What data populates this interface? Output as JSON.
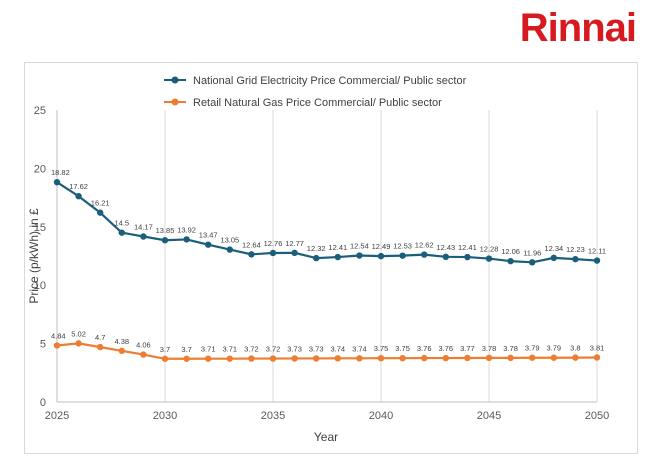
{
  "brand": {
    "logo_text": "Rinnai",
    "color": "#d71920"
  },
  "chart_data": {
    "type": "line",
    "xlabel": "Year",
    "ylabel": "Price (p/kWh) in £",
    "xlim": [
      2025,
      2050
    ],
    "ylim": [
      0,
      25
    ],
    "x_ticks": [
      "2025",
      "2030",
      "2035",
      "2040",
      "2045",
      "2050"
    ],
    "y_ticks": [
      "0",
      "5",
      "10",
      "15",
      "20",
      "25"
    ],
    "grid": "vertical",
    "legend": "top",
    "x": [
      2025,
      2026,
      2027,
      2028,
      2029,
      2030,
      2031,
      2032,
      2033,
      2034,
      2035,
      2036,
      2037,
      2038,
      2039,
      2040,
      2041,
      2042,
      2043,
      2044,
      2045,
      2046,
      2047,
      2048,
      2049,
      2050
    ],
    "series": [
      {
        "name": "National Grid Electricity Price Commercial/ Public sector",
        "color": "#1b5e7b",
        "values": [
          18.82,
          17.62,
          16.21,
          14.5,
          14.17,
          13.85,
          13.92,
          13.47,
          13.05,
          12.64,
          12.76,
          12.77,
          12.32,
          12.41,
          12.54,
          12.49,
          12.53,
          12.62,
          12.43,
          12.41,
          12.28,
          12.06,
          11.96,
          12.34,
          12.23,
          12.11
        ]
      },
      {
        "name": "Retail Natural Gas Price Commercial/ Public sector",
        "color": "#ed7d31",
        "values": [
          4.84,
          5.02,
          4.7,
          4.38,
          4.06,
          3.7,
          3.7,
          3.71,
          3.71,
          3.72,
          3.72,
          3.73,
          3.73,
          3.74,
          3.74,
          3.75,
          3.75,
          3.76,
          3.76,
          3.77,
          3.78,
          3.78,
          3.79,
          3.79,
          3.8,
          3.81
        ]
      }
    ]
  }
}
